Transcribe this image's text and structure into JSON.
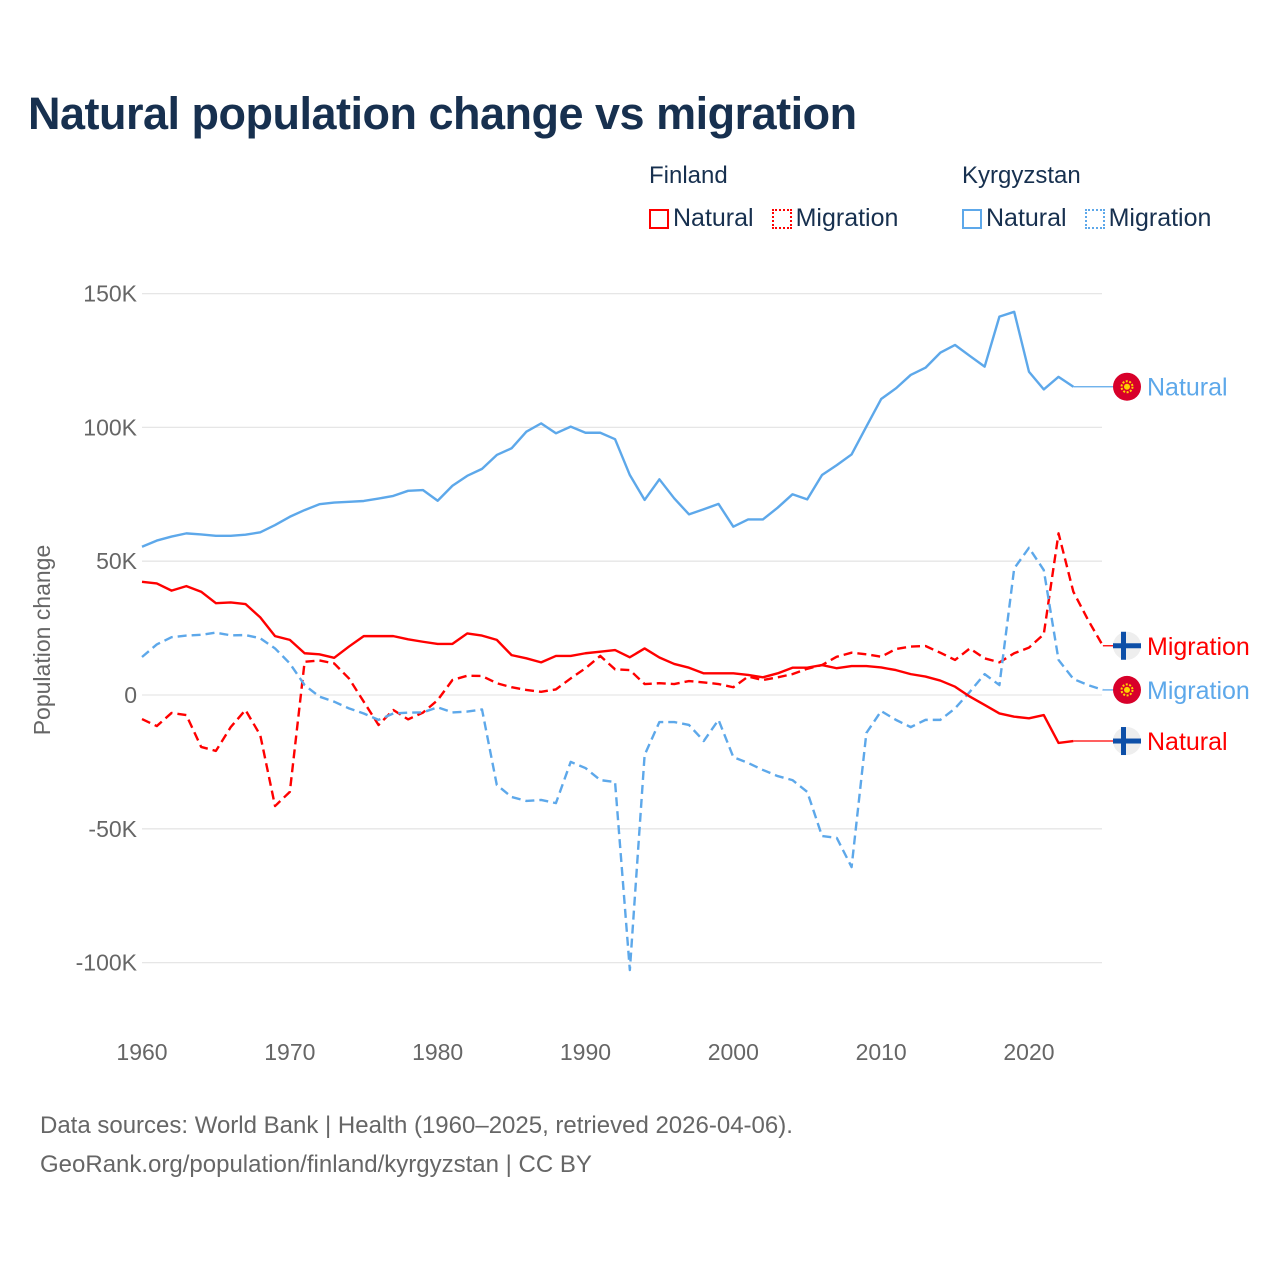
{
  "title": "Natural population change vs migration",
  "legend": {
    "groups": [
      {
        "name": "Finland",
        "items": [
          {
            "label": "Natural",
            "style": "solid",
            "color": "#ff0000"
          },
          {
            "label": "Migration",
            "style": "dotted",
            "color": "#ff0000"
          }
        ]
      },
      {
        "name": "Kyrgyzstan",
        "items": [
          {
            "label": "Natural",
            "style": "solid",
            "color": "#5da8ea"
          },
          {
            "label": "Migration",
            "style": "dotted",
            "color": "#5da8ea"
          }
        ]
      }
    ]
  },
  "footer": {
    "line1": "Data sources: World Bank | Health (1960–2025, retrieved 2026-04-06).",
    "line2": "GeoRank.org/population/finland/kyrgyzstan | CC BY"
  },
  "chart_data": {
    "type": "line",
    "title": "Natural population change vs migration",
    "xlabel": "",
    "ylabel": "Population change",
    "units": "thousands",
    "xlim": [
      1960,
      2025
    ],
    "ylim": [
      -110,
      155
    ],
    "x_ticks": [
      1960,
      1970,
      1980,
      1990,
      2000,
      2010,
      2020
    ],
    "y_ticks": [
      {
        "value": 150,
        "label": "150K"
      },
      {
        "value": 100,
        "label": "100K"
      },
      {
        "value": 50,
        "label": "50K"
      },
      {
        "value": 0,
        "label": "0"
      },
      {
        "value": -50,
        "label": "-50K"
      },
      {
        "value": -100,
        "label": "-100K"
      }
    ],
    "grid": true,
    "legend_position": "top-right",
    "series": [
      {
        "country": "Kyrgyzstan",
        "name": "Natural",
        "color": "#5da8ea",
        "dash": false,
        "flag": "kyrgyzstan-flag",
        "start": 1960,
        "values": [
          55.4,
          57.7,
          59.2,
          60.4,
          60.0,
          59.5,
          59.5,
          59.9,
          60.8,
          63.5,
          66.6,
          69.1,
          71.3,
          71.9,
          72.2,
          72.5,
          73.4,
          74.4,
          76.3,
          76.6,
          72.6,
          78.2,
          81.9,
          84.5,
          89.7,
          92.2,
          98.4,
          101.5,
          97.8,
          100.3,
          98.0,
          98.0,
          95.6,
          82.2,
          72.9,
          80.6,
          73.5,
          67.5,
          69.4,
          71.4,
          62.9,
          65.6,
          65.6,
          70.0,
          75.0,
          73.1,
          82.2,
          85.9,
          89.9,
          100.3,
          110.6,
          114.6,
          119.6,
          122.3,
          127.9,
          130.8,
          126.7,
          122.7,
          141.4,
          143.2,
          120.8,
          114.2,
          118.9,
          115.2
        ]
      },
      {
        "country": "Finland",
        "name": "Migration",
        "color": "#ff0000",
        "dash": true,
        "flag": "finland-flag",
        "start": 1960,
        "values": [
          -9.0,
          -11.6,
          -6.7,
          -7.5,
          -19.4,
          -20.9,
          -12.0,
          -5.6,
          -15.0,
          -41.5,
          -36.2,
          12.4,
          12.9,
          11.8,
          6.2,
          -2.5,
          -11.2,
          -5.6,
          -9.1,
          -6.6,
          -1.9,
          5.6,
          7.2,
          7.1,
          4.4,
          2.9,
          1.9,
          1.2,
          2.1,
          6.2,
          10.0,
          14.6,
          9.6,
          9.3,
          4.1,
          4.4,
          4.1,
          5.2,
          4.7,
          4.1,
          2.9,
          6.9,
          5.6,
          6.6,
          7.8,
          9.8,
          11.2,
          14.3,
          15.8,
          15.2,
          14.3,
          17.2,
          18.1,
          18.3,
          15.8,
          13.1,
          17.4,
          13.7,
          12.2,
          15.6,
          17.7,
          22.7,
          60.4,
          38.6,
          28.0,
          18.4
        ]
      },
      {
        "country": "Kyrgyzstan",
        "name": "Migration",
        "color": "#5da8ea",
        "dash": true,
        "flag": "kyrgyzstan-flag",
        "start": 1960,
        "values": [
          14.2,
          18.9,
          21.6,
          22.2,
          22.5,
          23.3,
          22.3,
          22.4,
          21.2,
          17.4,
          11.8,
          3.7,
          -0.6,
          -2.5,
          -5.0,
          -6.9,
          -9.3,
          -6.9,
          -6.6,
          -6.5,
          -4.6,
          -6.5,
          -6.2,
          -5.4,
          -33.6,
          -38.1,
          -39.6,
          -39.2,
          -40.4,
          -25.0,
          -27.3,
          -31.8,
          -32.5,
          -102.8,
          -22.4,
          -10.1,
          -10.1,
          -11.2,
          -17.2,
          -9.3,
          -23.2,
          -25.4,
          -28.0,
          -30.3,
          -31.8,
          -36.2,
          -52.7,
          -53.4,
          -64.3,
          -14.2,
          -6.0,
          -9.3,
          -12.0,
          -9.3,
          -9.3,
          -5.0,
          1.2,
          7.8,
          3.7,
          47.3,
          55.0,
          46.7,
          13.1,
          6.0,
          3.7,
          1.9
        ]
      },
      {
        "country": "Finland",
        "name": "Natural",
        "color": "#ff0000",
        "dash": false,
        "flag": "finland-flag",
        "start": 1960,
        "values": [
          42.3,
          41.7,
          39.0,
          40.7,
          38.6,
          34.3,
          34.6,
          34.0,
          29.0,
          22.0,
          20.6,
          15.6,
          15.2,
          13.9,
          18.1,
          22.0,
          22.0,
          22.0,
          20.8,
          19.9,
          19.1,
          19.1,
          23.0,
          22.2,
          20.6,
          14.9,
          13.7,
          12.2,
          14.6,
          14.6,
          15.6,
          16.2,
          16.8,
          14.1,
          17.4,
          14.0,
          11.6,
          10.2,
          8.1,
          8.1,
          8.1,
          7.5,
          6.6,
          8.1,
          10.2,
          10.2,
          11.2,
          10.0,
          10.8,
          10.8,
          10.3,
          9.3,
          7.8,
          6.9,
          5.4,
          3.1,
          -0.6,
          -3.7,
          -6.9,
          -8.1,
          -8.7,
          -7.5,
          -17.9,
          -17.2
        ]
      }
    ]
  }
}
